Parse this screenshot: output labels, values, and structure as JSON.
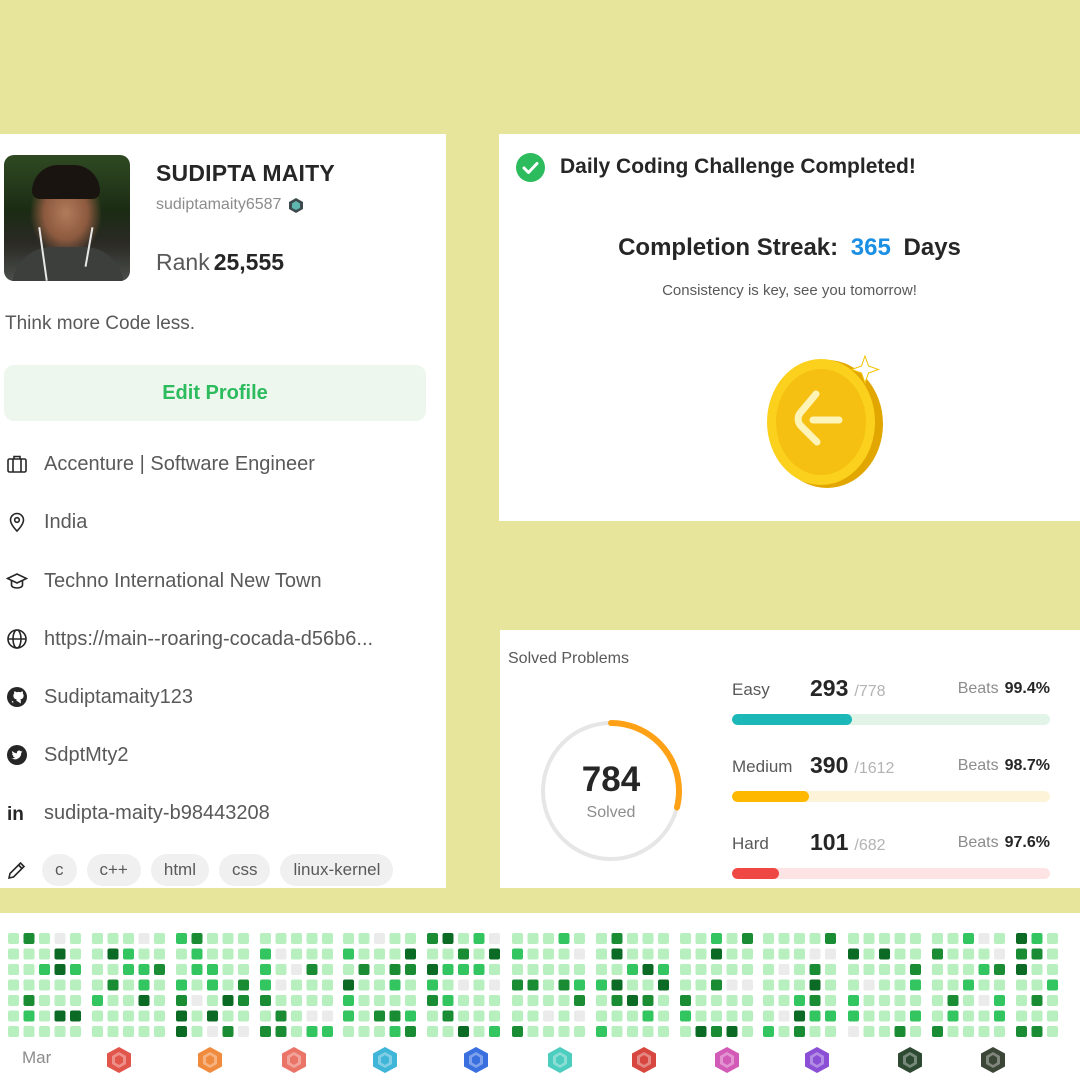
{
  "profile": {
    "name": "SUDIPTA MAITY",
    "username": "sudiptamaity6587",
    "rank_label": "Rank",
    "rank_value": "25,555",
    "bio": "Think more Code less.",
    "edit_label": "Edit Profile",
    "company": "Accenture | Software Engineer",
    "location": "India",
    "school": "Techno International New Town",
    "website": "https://main--roaring-cocada-d56b6...",
    "github": "Sudiptamaity123",
    "twitter": "SdptMty2",
    "linkedin": "sudipta-maity-b98443208",
    "tags": [
      "c",
      "c++",
      "html",
      "css",
      "linux-kernel"
    ]
  },
  "daily": {
    "title": "Daily Coding Challenge Completed!",
    "streak_label": "Completion Streak:",
    "streak_value": "365",
    "streak_unit": "Days",
    "subtitle": "Consistency is key, see you tomorrow!"
  },
  "solved": {
    "title": "Solved Problems",
    "total": "784",
    "total_label": "Solved",
    "ring_color": "#ffa116",
    "difficulties": [
      {
        "label": "Easy",
        "solved": "293",
        "total": "/778",
        "beats_label": "Beats",
        "beats": "99.4%",
        "fraction": 0.377,
        "color": "#1cb8b8",
        "track": "#e2f4e8"
      },
      {
        "label": "Medium",
        "solved": "390",
        "total": "/1612",
        "beats_label": "Beats",
        "beats": "98.7%",
        "fraction": 0.242,
        "color": "#ffb800",
        "track": "#fdf3d8"
      },
      {
        "label": "Hard",
        "solved": "101",
        "total": "/682",
        "beats_label": "Beats",
        "beats": "97.6%",
        "fraction": 0.148,
        "color": "#ef4743",
        "track": "#fde3e3"
      }
    ]
  },
  "heatmap": {
    "month_label": "Mar",
    "colors": [
      "#ebebeb",
      "#b8efbf",
      "#33c55f",
      "#1a8d34",
      "#0b6b24"
    ],
    "badges": [
      {
        "icon": "badge-red-icon",
        "color": "#e2554a"
      },
      {
        "icon": "badge-orange-icon",
        "color": "#f08b3e"
      },
      {
        "icon": "badge-salmon-icon",
        "color": "#ea7468"
      },
      {
        "icon": "badge-cyan-icon",
        "color": "#3fb6d8"
      },
      {
        "icon": "badge-blue-icon",
        "color": "#3a6fe0"
      },
      {
        "icon": "badge-teal-icon",
        "color": "#4ccdc0"
      },
      {
        "icon": "badge-crimson-icon",
        "color": "#d8473f"
      },
      {
        "icon": "badge-pink-icon",
        "color": "#d35bb8"
      },
      {
        "icon": "badge-purple-icon",
        "color": "#8b4fd6"
      },
      {
        "icon": "badge-dark-green-icon",
        "color": "#2f4a33"
      },
      {
        "icon": "badge-dark-olive-icon",
        "color": "#3b4636"
      }
    ]
  }
}
